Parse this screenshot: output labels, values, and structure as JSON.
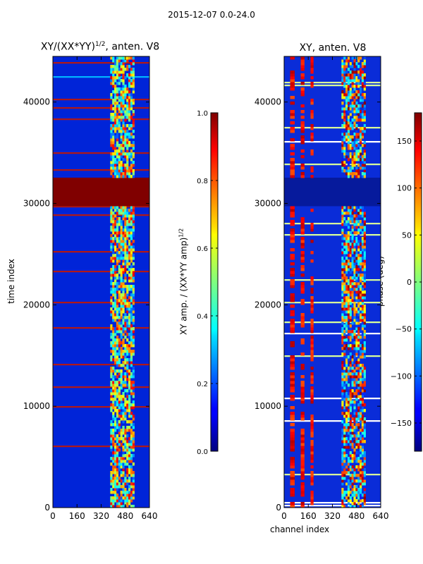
{
  "figure": {
    "suptitle": "2015-12-07 0.0-24.0",
    "left_title_main": "XY/(XX*YY)",
    "left_title_sup": "1/2",
    "left_title_rest": ", anten. V8",
    "right_title": "XY, anten. V8",
    "ylabel": "time index",
    "xlabel": "channel index",
    "cb1_label_main": "XY amp. / (XX*YY amp)",
    "cb1_label_sup": "1/2",
    "cb2_label": "phase (deg)"
  },
  "chart_data": [
    {
      "type": "heatmap",
      "name": "normalized-amplitude",
      "title": "XY/(XX*YY)^1/2, anten. V8",
      "xlabel": "",
      "ylabel": "time index",
      "xlim": [
        0,
        640
      ],
      "ylim": [
        0,
        44500
      ],
      "x_ticks": [
        0,
        160,
        320,
        480,
        640
      ],
      "y_ticks": [
        0,
        10000,
        20000,
        30000,
        40000
      ],
      "colorbar": {
        "label": "XY amp. / (XX*YY amp)^1/2",
        "range": [
          0.0,
          1.0
        ],
        "ticks": [
          "0.0",
          "0.2",
          "0.4",
          "0.6",
          "0.8",
          "1.0"
        ],
        "tick_values": [
          0.0,
          0.2,
          0.4,
          0.6,
          0.8,
          1.0
        ]
      },
      "colormap": "jet",
      "saturated_time_band": [
        29700,
        32400
      ]
    },
    {
      "type": "heatmap",
      "name": "phase",
      "title": "XY, anten. V8",
      "xlabel": "channel index",
      "ylabel": "",
      "xlim": [
        0,
        640
      ],
      "ylim": [
        0,
        44500
      ],
      "x_ticks": [
        0,
        160,
        320,
        480,
        640
      ],
      "y_ticks": [
        0,
        10000,
        20000,
        30000,
        40000
      ],
      "colorbar": {
        "label": "phase (deg)",
        "range": [
          -180,
          180
        ],
        "ticks": [
          "−150",
          "−100",
          "−50",
          "0",
          "50",
          "100",
          "150"
        ],
        "tick_values": [
          -150,
          -100,
          -50,
          0,
          50,
          100,
          150
        ]
      },
      "colormap": "jet",
      "low_phase_band": [
        29700,
        32400
      ]
    }
  ]
}
